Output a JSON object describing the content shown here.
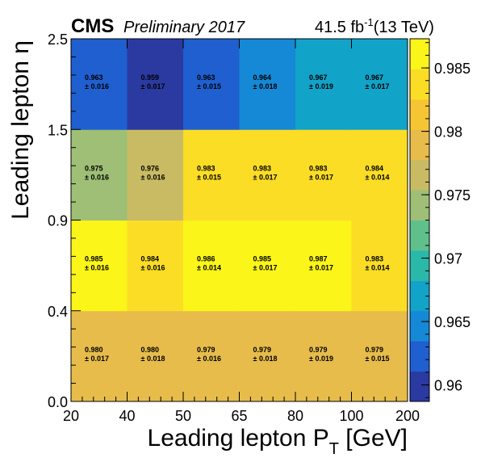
{
  "header": {
    "cms_label": "CMS",
    "preliminary_label": "Preliminary 2017",
    "lumi_value": "41.5 fb",
    "lumi_exponent": "-1",
    "lumi_energy": "(13 TeV)"
  },
  "chart_data": {
    "type": "heatmap",
    "xlabel": "Leading lepton P",
    "xlabel_subscript": "T",
    "xlabel_unit": " [GeV]",
    "ylabel": "Leading lepton η",
    "x_bin_edges": [
      20,
      40,
      50,
      65,
      80,
      100,
      200
    ],
    "x_tick_labels": [
      "20",
      "40",
      "50",
      "65",
      "80",
      "100",
      "200"
    ],
    "y_bin_edges": [
      0.0,
      0.4,
      0.9,
      1.5,
      2.5
    ],
    "y_tick_labels": [
      "0.0",
      "0.4",
      "0.9",
      "1.5",
      "2.5"
    ],
    "rows": [
      {
        "eta_bin": "0.0-0.4",
        "values": [
          0.98,
          0.98,
          0.979,
          0.979,
          0.979,
          0.979
        ],
        "labels": [
          "0.980",
          "0.980",
          "0.979",
          "0.979",
          "0.979",
          "0.979"
        ],
        "errors": [
          "± 0.017",
          "± 0.018",
          "± 0.016",
          "± 0.018",
          "± 0.019",
          "± 0.015"
        ]
      },
      {
        "eta_bin": "0.4-0.9",
        "values": [
          0.985,
          0.984,
          0.986,
          0.985,
          0.987,
          0.983
        ],
        "labels": [
          "0.985",
          "0.984",
          "0.986",
          "0.985",
          "0.987",
          "0.983"
        ],
        "errors": [
          "± 0.016",
          "± 0.016",
          "± 0.014",
          "± 0.017",
          "± 0.017",
          "± 0.014"
        ]
      },
      {
        "eta_bin": "0.9-1.5",
        "values": [
          0.975,
          0.976,
          0.983,
          0.983,
          0.983,
          0.984
        ],
        "labels": [
          "0.975",
          "0.976",
          "0.983",
          "0.983",
          "0.983",
          "0.984"
        ],
        "errors": [
          "± 0.016",
          "± 0.016",
          "± 0.015",
          "± 0.017",
          "± 0.017",
          "± 0.014"
        ]
      },
      {
        "eta_bin": "1.5-2.5",
        "values": [
          0.963,
          0.959,
          0.963,
          0.964,
          0.967,
          0.967
        ],
        "labels": [
          "0.963",
          "0.959",
          "0.963",
          "0.964",
          "0.967",
          "0.967"
        ],
        "errors": [
          "± 0.016",
          "± 0.017",
          "± 0.015",
          "± 0.018",
          "± 0.019",
          "± 0.017"
        ]
      }
    ],
    "z_range": [
      0.9587,
      0.9873
    ],
    "colorbar_ticks": [
      {
        "value": 0.96,
        "label": "0.96"
      },
      {
        "value": 0.965,
        "label": "0.965"
      },
      {
        "value": 0.97,
        "label": "0.97"
      },
      {
        "value": 0.975,
        "label": "0.975"
      },
      {
        "value": 0.98,
        "label": "0.98"
      },
      {
        "value": 0.985,
        "label": "0.985"
      }
    ],
    "colormap": [
      "#2b3aa0",
      "#1f5fcf",
      "#1588d6",
      "#12a3c9",
      "#2ab9a8",
      "#5fc08b",
      "#9ebf75",
      "#c9bb63",
      "#e7bc4b",
      "#f6c533",
      "#fbdd26",
      "#fbf51a"
    ],
    "grid": false
  }
}
